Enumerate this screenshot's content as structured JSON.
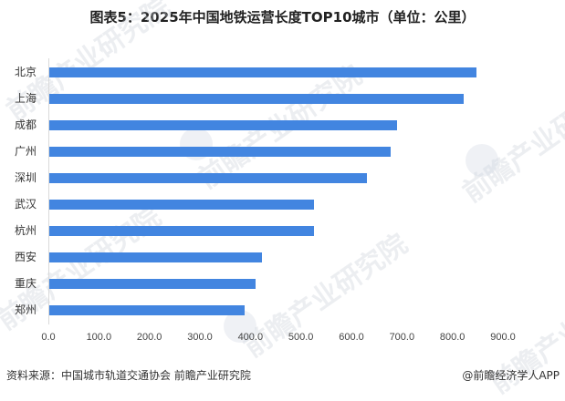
{
  "title": "图表5：2025年中国地铁运营长度TOP10城市（单位：公里）",
  "chart_data": {
    "type": "bar",
    "orientation": "horizontal",
    "title": "图表5：2025年中国地铁运营长度TOP10城市（单位：公里）",
    "xlabel": "",
    "ylabel": "",
    "categories": [
      "北京",
      "上海",
      "成都",
      "广州",
      "深圳",
      "武汉",
      "杭州",
      "西安",
      "重庆",
      "郑州"
    ],
    "values": [
      846,
      821,
      689,
      675,
      629,
      524,
      524,
      421,
      409,
      387
    ],
    "xlim": [
      0,
      900
    ],
    "xticks": [
      "0.0",
      "100.0",
      "200.0",
      "300.0",
      "400.0",
      "500.0",
      "600.0",
      "700.0",
      "800.0",
      "900.0"
    ],
    "grid": false,
    "legend": null,
    "bar_color": "#4285e0"
  },
  "footer": {
    "source": "资料来源：中国城市轨道交通协会 前瞻产业研究院",
    "credit": "@前瞻经济学人APP"
  },
  "watermark": {
    "text": "前瞻产业研究院"
  }
}
